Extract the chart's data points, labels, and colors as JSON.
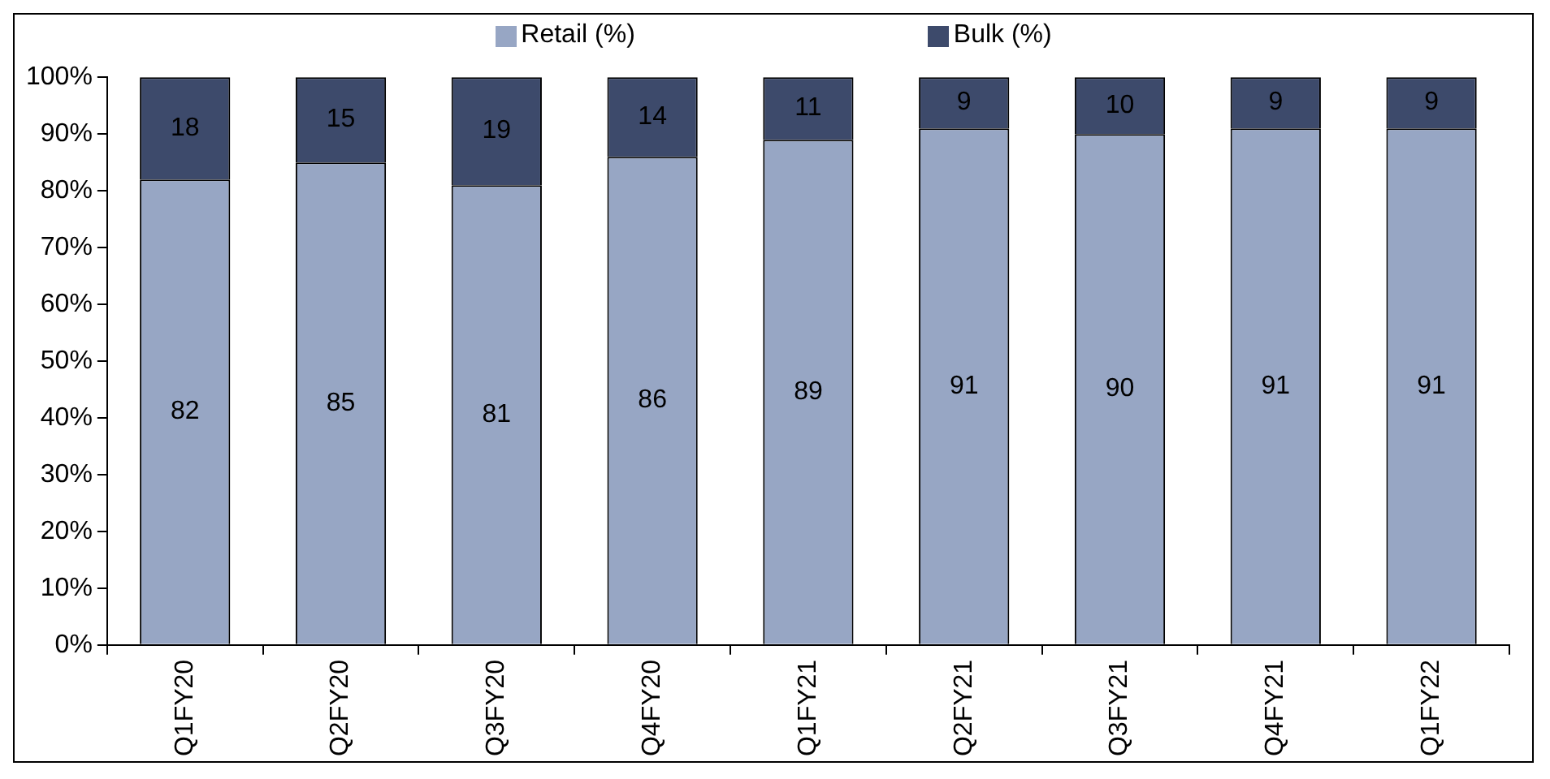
{
  "chart_data": {
    "type": "bar",
    "stacked": true,
    "categories": [
      "Q1FY20",
      "Q2FY20",
      "Q3FY20",
      "Q4FY20",
      "Q1FY21",
      "Q2FY21",
      "Q3FY21",
      "Q4FY21",
      "Q1FY22"
    ],
    "series": [
      {
        "name": "Retail (%)",
        "color": "#97a6c4",
        "values": [
          82,
          85,
          81,
          86,
          89,
          91,
          90,
          91,
          91
        ]
      },
      {
        "name": "Bulk (%)",
        "color": "#3d4a6b",
        "values": [
          18,
          15,
          19,
          14,
          11,
          9,
          10,
          9,
          9
        ]
      }
    ],
    "ylim": [
      0,
      100
    ],
    "yticks": [
      {
        "value": 0,
        "label": "0%"
      },
      {
        "value": 10,
        "label": "10%"
      },
      {
        "value": 20,
        "label": "20%"
      },
      {
        "value": 30,
        "label": "30%"
      },
      {
        "value": 40,
        "label": "40%"
      },
      {
        "value": 50,
        "label": "50%"
      },
      {
        "value": 60,
        "label": "60%"
      },
      {
        "value": 70,
        "label": "70%"
      },
      {
        "value": 80,
        "label": "80%"
      },
      {
        "value": 90,
        "label": "90%"
      },
      {
        "value": 100,
        "label": "100%"
      }
    ],
    "grid": false,
    "legend": "top",
    "data_labels": true
  }
}
